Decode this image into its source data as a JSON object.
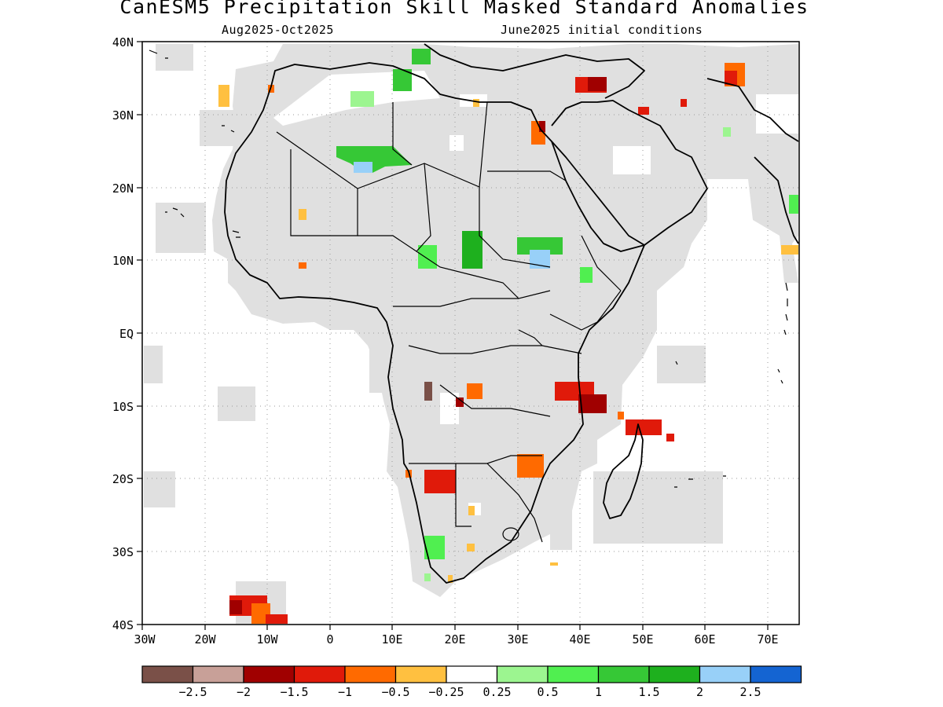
{
  "title": "CanESM5 Precipitation Skill Masked Standard Anomalies",
  "subtitle_left": "Aug2025-Oct2025",
  "subtitle_right": "June2025 initial conditions",
  "map": {
    "region": "Africa",
    "lon_range": [
      -30,
      75
    ],
    "lat_range": [
      -40,
      40
    ],
    "lat_labels": [
      "40N",
      "30N",
      "20N",
      "10N",
      "EQ",
      "10S",
      "20S",
      "30S",
      "40S"
    ],
    "lat_values": [
      40,
      30,
      20,
      10,
      0,
      -10,
      -20,
      -30,
      -40
    ],
    "lon_labels": [
      "30W",
      "20W",
      "10W",
      "0",
      "10E",
      "20E",
      "30E",
      "40E",
      "50E",
      "60E",
      "70E"
    ],
    "lon_values": [
      -30,
      -20,
      -10,
      0,
      10,
      20,
      30,
      40,
      50,
      60,
      70
    ],
    "grid": "dotted",
    "mask_color": "#e0e0e0",
    "ocean_color": "#ffffff",
    "coastline_color": "#000000"
  },
  "colorbar": {
    "colors": [
      "#7a5048",
      "#c8a098",
      "#a00000",
      "#e01a0a",
      "#ff6a00",
      "#ffc040",
      "#ffffff",
      "#9cf590",
      "#50ef50",
      "#36c836",
      "#1eb01e",
      "#98d0f8",
      "#1464d2"
    ],
    "labels": [
      "-2.5",
      "-2",
      "-1.5",
      "-1",
      "-0.5",
      "-0.25",
      "0.25",
      "0.5",
      "1",
      "1.5",
      "2",
      "2.5"
    ]
  },
  "anomaly_patches": [
    {
      "region": "Eastern Mediterranean / Turkey",
      "category": "-1.5",
      "color": "#a00000"
    },
    {
      "region": "Upper Nile, Egypt",
      "category": "-1",
      "color": "#ff6a00"
    },
    {
      "region": "Northeast Iran",
      "category": "-1",
      "color": "#e01a0a"
    },
    {
      "region": "Central Sahara (Algeria/Mali/Niger)",
      "category": "1.5",
      "color": "#36c836"
    },
    {
      "region": "Tunisia",
      "category": "1",
      "color": "#50ef50"
    },
    {
      "region": "Chad / Sudan border",
      "category": "1.5",
      "color": "#1eb01e"
    },
    {
      "region": "Northern Cameroon",
      "category": "1",
      "color": "#50ef50"
    },
    {
      "region": "South Sudan / Ethiopia",
      "category": "2",
      "color": "#98d0f8"
    },
    {
      "region": "Angola coast",
      "category": "-2.5",
      "color": "#7a5048"
    },
    {
      "region": "Southern DR Congo",
      "category": "-1",
      "color": "#ff6a00"
    },
    {
      "region": "Tanzania",
      "category": "-1",
      "color": "#e01a0a"
    },
    {
      "region": "Northern Madagascar",
      "category": "-1",
      "color": "#e01a0a"
    },
    {
      "region": "Zimbabwe",
      "category": "-1",
      "color": "#ff6a00"
    },
    {
      "region": "Namibia",
      "category": "-1",
      "color": "#e01a0a"
    },
    {
      "region": "Western South Africa",
      "category": "1",
      "color": "#50ef50"
    },
    {
      "region": "South Atlantic (Tristan da Cunha)",
      "category": "-1",
      "color": "#e01a0a"
    }
  ]
}
